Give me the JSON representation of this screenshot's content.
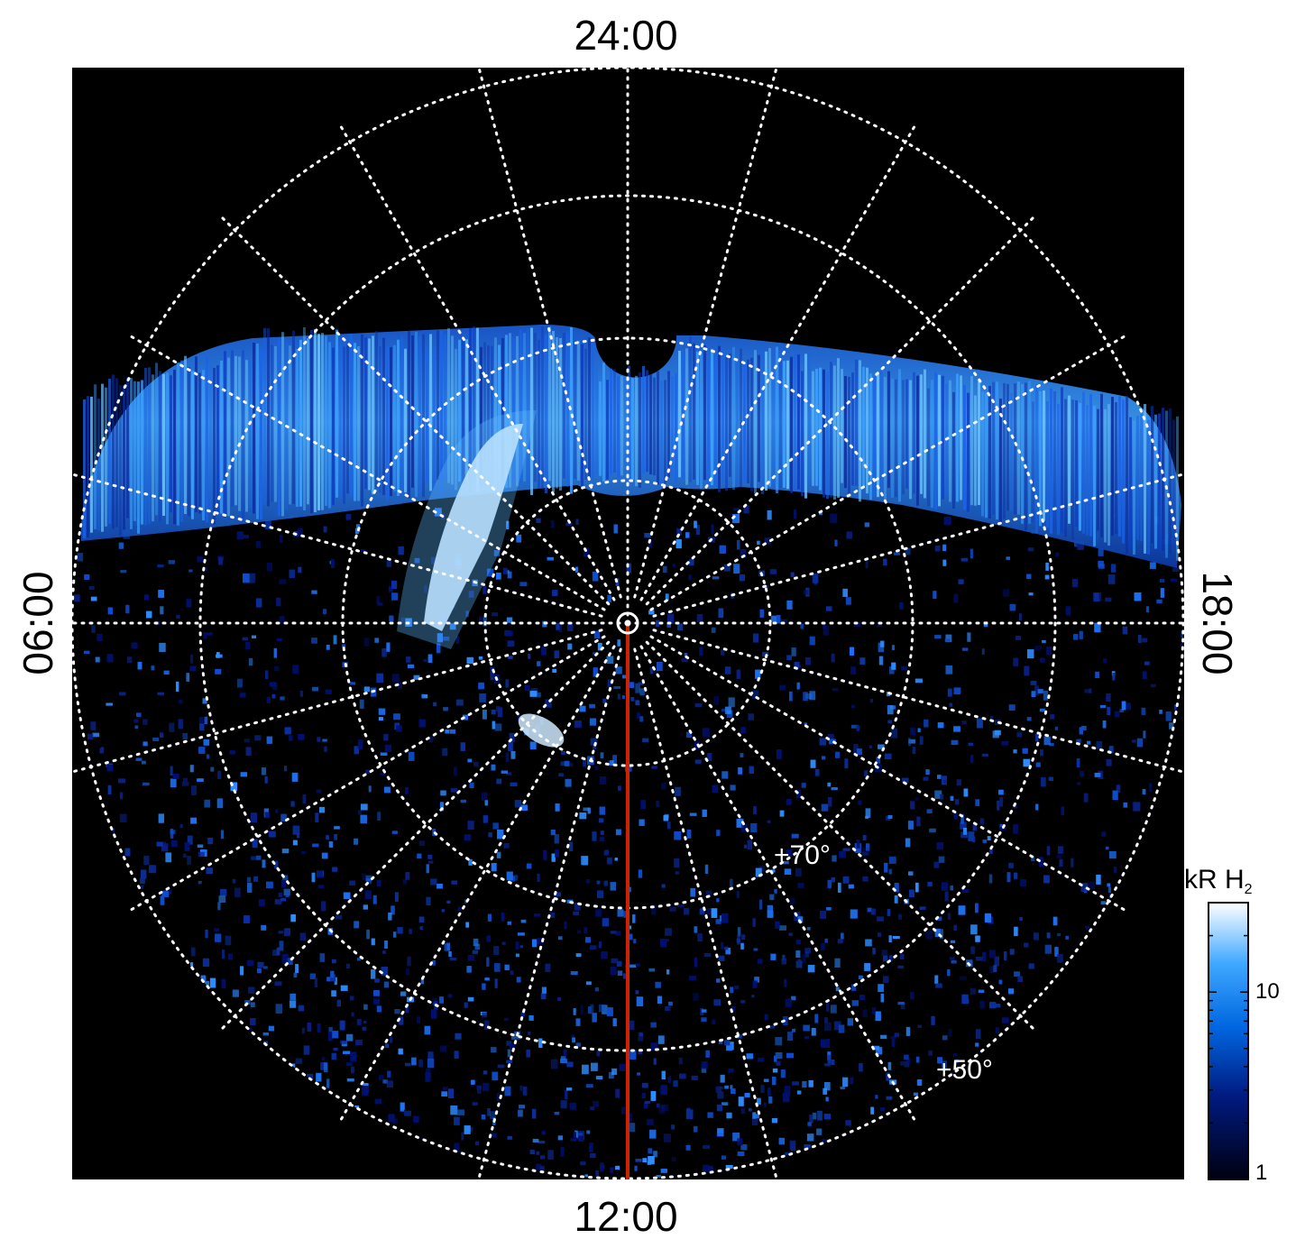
{
  "plot": {
    "lt_labels": {
      "top": "24:00",
      "bottom": "12:00",
      "left": "06:00",
      "right": "18:00"
    },
    "lat_labels": [
      "+70°",
      "+50°"
    ],
    "grid_style": "white dotted",
    "background": "#000000",
    "meridian_color": "#cc2200",
    "center_marker": "pole-ring"
  },
  "colorbar": {
    "title_main": "kR H",
    "title_sub": "2",
    "tick_labels": [
      "10",
      "1"
    ],
    "scale": "log",
    "colors": [
      "#000010",
      "#001a80",
      "#0066e0",
      "#3fa8ff",
      "#ffffff"
    ]
  }
}
